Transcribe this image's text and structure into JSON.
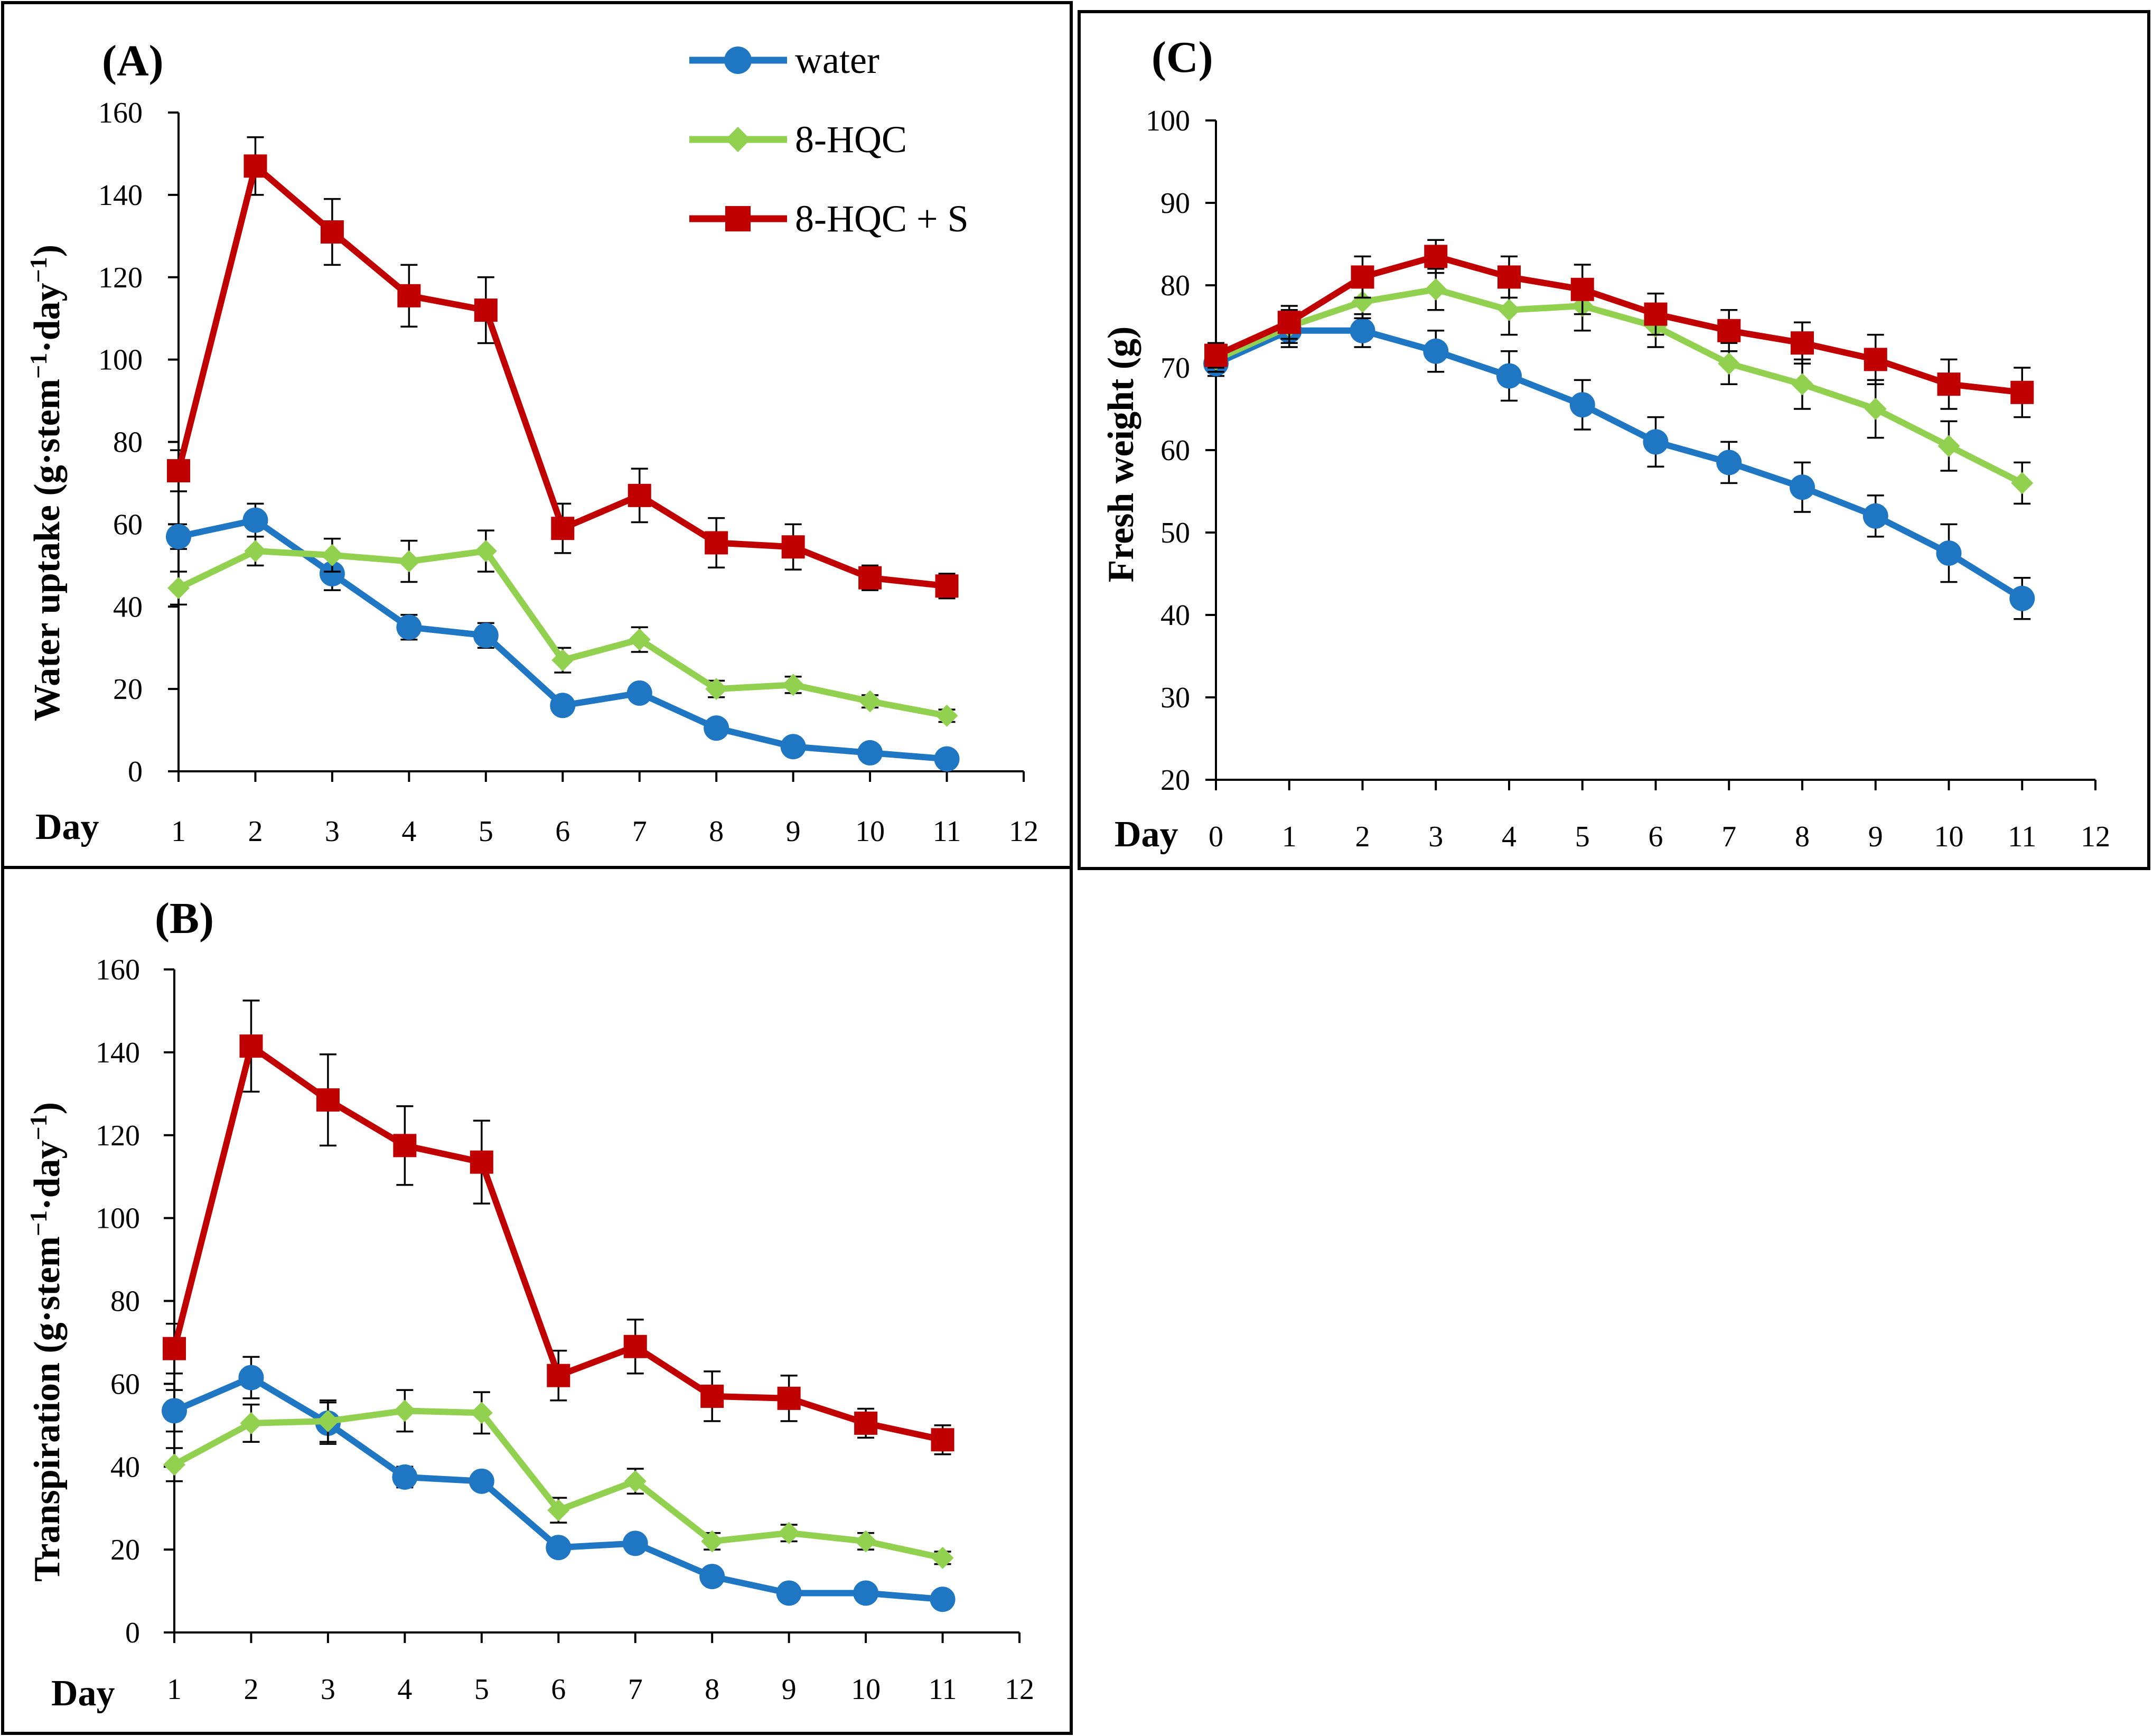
{
  "colors": {
    "water": "#1f77c4",
    "hqc": "#92d050",
    "hqcs": "#c00000",
    "axis": "#000000"
  },
  "legend": {
    "items": [
      {
        "key": "water",
        "label": "water",
        "marker": "circle"
      },
      {
        "key": "hqc",
        "label": "8-HQC",
        "marker": "diamond"
      },
      {
        "key": "hqcs",
        "label": "8-HQC + S",
        "marker": "square"
      }
    ]
  },
  "chart_data": [
    {
      "id": "A",
      "type": "line",
      "panel_label": "(A)",
      "xlabel": "Day",
      "ylabel_main": "Water uptake (g·stem",
      "ylabel_sup1": "−1",
      "ylabel_mid": "·day",
      "ylabel_sup2": "−1",
      "ylabel_end": ")",
      "xlim": [
        1,
        12
      ],
      "ylim": [
        0,
        160
      ],
      "xticks": [
        1,
        2,
        3,
        4,
        5,
        6,
        7,
        8,
        9,
        10,
        11,
        12
      ],
      "yticks": [
        0,
        20,
        40,
        60,
        80,
        100,
        120,
        140,
        160
      ],
      "x": [
        1,
        2,
        3,
        4,
        5,
        6,
        7,
        8,
        9,
        10,
        11
      ],
      "series": [
        {
          "key": "water",
          "name": "water",
          "values": [
            57,
            61,
            48,
            35,
            33,
            16,
            19,
            10.5,
            6,
            4.5,
            3
          ],
          "errors": [
            3,
            4,
            4,
            3,
            3,
            2,
            2,
            1.5,
            1,
            1,
            1
          ]
        },
        {
          "key": "hqc",
          "name": "8-HQC",
          "values": [
            44.5,
            53.5,
            52.5,
            51,
            53.5,
            27,
            32,
            20,
            21,
            17,
            13.5
          ],
          "errors": [
            4,
            3.5,
            4,
            5,
            5,
            3,
            3,
            2,
            2,
            1.5,
            1.5
          ]
        },
        {
          "key": "hqcs",
          "name": "8-HQC + S",
          "values": [
            73,
            147,
            131,
            115.5,
            112,
            59,
            67,
            55.5,
            54.5,
            47,
            45
          ],
          "errors": [
            5,
            7,
            8,
            7.5,
            8,
            6,
            6.5,
            6,
            5.5,
            3,
            3
          ]
        }
      ]
    },
    {
      "id": "B",
      "type": "line",
      "panel_label": "(B)",
      "xlabel": "Day",
      "ylabel_main": "Transpiration (g·stem",
      "ylabel_sup1": "−1",
      "ylabel_mid": "·day",
      "ylabel_sup2": "−1",
      "ylabel_end": ")",
      "xlim": [
        1,
        12
      ],
      "ylim": [
        0,
        160
      ],
      "xticks": [
        1,
        2,
        3,
        4,
        5,
        6,
        7,
        8,
        9,
        10,
        11,
        12
      ],
      "yticks": [
        0,
        20,
        40,
        60,
        80,
        100,
        120,
        140,
        160
      ],
      "x": [
        1,
        2,
        3,
        4,
        5,
        6,
        7,
        8,
        9,
        10,
        11
      ],
      "series": [
        {
          "key": "water",
          "name": "water",
          "values": [
            53.5,
            61.5,
            50.5,
            37.5,
            36.5,
            20.5,
            21.5,
            13.5,
            9.5,
            9.5,
            8
          ],
          "errors": [
            5,
            5,
            5,
            2.5,
            2,
            2,
            2,
            1.5,
            1,
            1,
            1
          ]
        },
        {
          "key": "hqc",
          "name": "8-HQC",
          "values": [
            40.5,
            50.5,
            51,
            53.5,
            53,
            29.5,
            36.5,
            22,
            24,
            22,
            18
          ],
          "errors": [
            4,
            4.5,
            5,
            5,
            5,
            3,
            3,
            2,
            2,
            2,
            1.5
          ]
        },
        {
          "key": "hqcs",
          "name": "8-HQC + S",
          "values": [
            68.5,
            141.5,
            128.5,
            117.5,
            113.5,
            62,
            69,
            57,
            56.5,
            50.5,
            46.5
          ],
          "errors": [
            6,
            11,
            11,
            9.5,
            10,
            6,
            6.5,
            6,
            5.5,
            3.5,
            3.5
          ]
        }
      ]
    },
    {
      "id": "C",
      "type": "line",
      "panel_label": "(C)",
      "xlabel": "Day",
      "ylabel_main": "Fresh weight (g)",
      "xlim": [
        0,
        12
      ],
      "ylim": [
        20,
        100
      ],
      "xticks": [
        0,
        1,
        2,
        3,
        4,
        5,
        6,
        7,
        8,
        9,
        10,
        11,
        12
      ],
      "yticks": [
        20,
        30,
        40,
        50,
        60,
        70,
        80,
        90,
        100
      ],
      "x": [
        0,
        1,
        2,
        3,
        4,
        5,
        6,
        7,
        8,
        9,
        10,
        11
      ],
      "series": [
        {
          "key": "water",
          "name": "water",
          "values": [
            70.5,
            74.5,
            74.5,
            72,
            69,
            65.5,
            61,
            58.5,
            55.5,
            52,
            47.5,
            42
          ],
          "errors": [
            1.5,
            2,
            2,
            2.5,
            3,
            3,
            3,
            2.5,
            3,
            2.5,
            3.5,
            2.5
          ]
        },
        {
          "key": "hqc",
          "name": "8-HQC",
          "values": [
            71,
            75,
            78,
            79.5,
            77,
            77.5,
            75,
            70.5,
            68,
            65,
            60.5,
            56
          ],
          "errors": [
            1.5,
            2,
            2,
            2.5,
            3,
            3,
            2.5,
            2.5,
            3,
            3.5,
            3,
            2.5
          ]
        },
        {
          "key": "hqcs",
          "name": "8-HQC + S",
          "values": [
            71.5,
            75.5,
            81,
            83.5,
            81,
            79.5,
            76.5,
            74.5,
            73,
            71,
            68,
            67
          ],
          "errors": [
            1.5,
            2,
            2.5,
            2,
            2.5,
            3,
            2.5,
            2.5,
            2.5,
            3,
            3,
            3
          ]
        }
      ]
    }
  ]
}
